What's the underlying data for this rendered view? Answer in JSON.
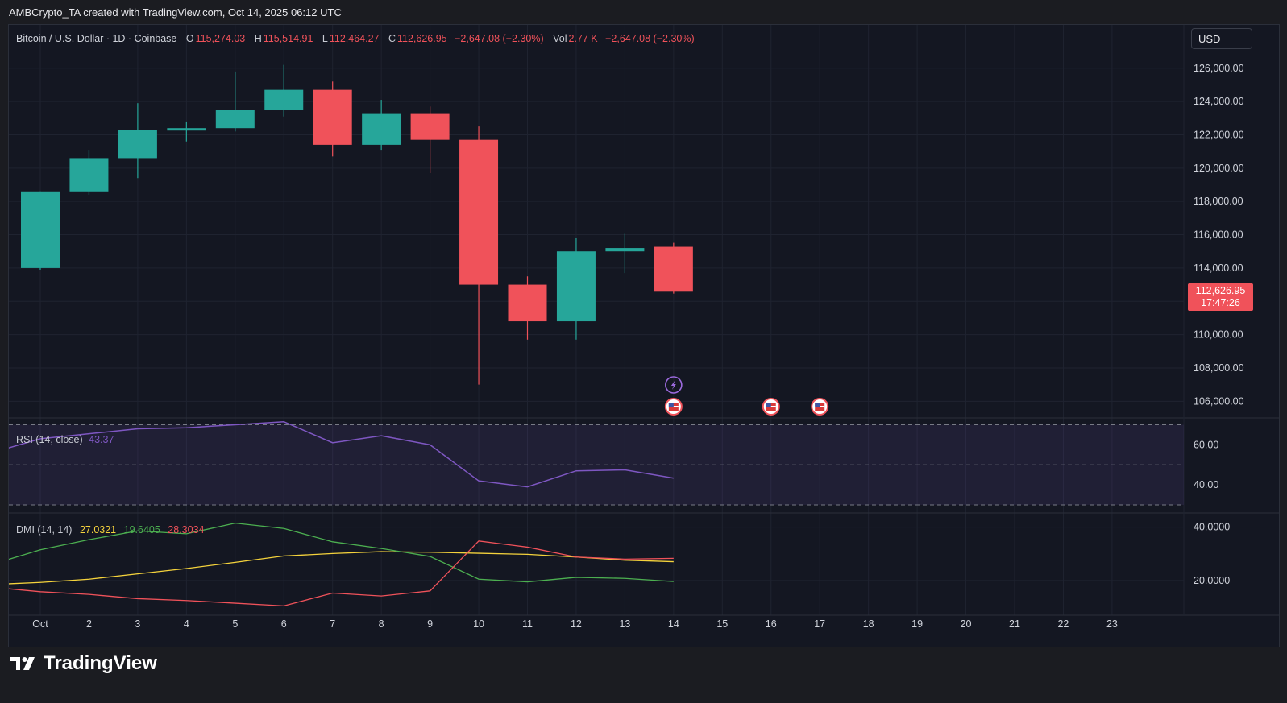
{
  "caption": "AMBCrypto_TA created with TradingView.com, Oct 14, 2025 06:12 UTC",
  "legend": {
    "symbol": "Bitcoin / U.S. Dollar · 1D · Coinbase",
    "o_label": "O",
    "o_value": "115,274.03",
    "h_label": "H",
    "h_value": "115,514.91",
    "l_label": "L",
    "l_value": "112,464.27",
    "c_label": "C",
    "c_value": "112,626.95",
    "change": "−2,647.08 (−2.30%)",
    "vol_label": "Vol",
    "vol_value": "2.77 K",
    "vol_change": "−2,647.08 (−2.30%)"
  },
  "currency": "USD",
  "price_tag": {
    "price": "112,626.95",
    "countdown": "17:47:26"
  },
  "rsi_legend": {
    "name": "RSI (14, close)",
    "value": "43.37"
  },
  "dmi_legend": {
    "name": "DMI (14, 14)",
    "adx": "27.0321",
    "plus_di": "19.6405",
    "minus_di": "28.3034"
  },
  "brand": "TradingView",
  "colors": {
    "up": "#26a69a",
    "down": "#f0525a",
    "rsi": "#7e57c2",
    "adx": "#f5d33c",
    "plus_di": "#4caf50",
    "minus_di": "#f0525a"
  },
  "chart_data": [
    {
      "type": "candlestick",
      "title": "Bitcoin / U.S. Dollar · 1D · Coinbase",
      "x_ticks": [
        "Oct",
        "2",
        "3",
        "4",
        "5",
        "6",
        "7",
        "8",
        "9",
        "10",
        "11",
        "12",
        "13",
        "14",
        "15",
        "16",
        "17",
        "18",
        "19",
        "20",
        "21",
        "22",
        "23"
      ],
      "y_ticks": [
        106000,
        108000,
        110000,
        112000,
        114000,
        116000,
        118000,
        120000,
        122000,
        124000,
        126000
      ],
      "y_tick_labels": [
        "106,000.00",
        "108,000.00",
        "110,000.00",
        "112,000.00",
        "114,000.00",
        "116,000.00",
        "118,000.00",
        "120,000.00",
        "122,000.00",
        "124,000.00",
        "126,000.00"
      ],
      "ylim": [
        105000,
        128600
      ],
      "candles": [
        {
          "x": "Oct",
          "open": 114000,
          "high": 118600,
          "low": 113900,
          "close": 118600
        },
        {
          "x": "2",
          "open": 118600,
          "high": 121100,
          "low": 118400,
          "close": 120600
        },
        {
          "x": "3",
          "open": 120600,
          "high": 123900,
          "low": 119400,
          "close": 122300
        },
        {
          "x": "4",
          "open": 122300,
          "high": 122800,
          "low": 121600,
          "close": 122400
        },
        {
          "x": "5",
          "open": 122400,
          "high": 125800,
          "low": 122200,
          "close": 123500
        },
        {
          "x": "6",
          "open": 123500,
          "high": 126200,
          "low": 123100,
          "close": 124700
        },
        {
          "x": "7",
          "open": 124700,
          "high": 125200,
          "low": 120700,
          "close": 121400
        },
        {
          "x": "8",
          "open": 121400,
          "high": 124100,
          "low": 121100,
          "close": 123300
        },
        {
          "x": "9",
          "open": 123300,
          "high": 123700,
          "low": 119700,
          "close": 121700
        },
        {
          "x": "10",
          "open": 121700,
          "high": 122500,
          "low": 107000,
          "close": 113000
        },
        {
          "x": "11",
          "open": 113000,
          "high": 113500,
          "low": 109700,
          "close": 110800
        },
        {
          "x": "12",
          "open": 110800,
          "high": 115800,
          "low": 109700,
          "close": 115000
        },
        {
          "x": "13",
          "open": 115000,
          "high": 116100,
          "low": 113700,
          "close": 115200
        },
        {
          "x": "14",
          "open": 115274.03,
          "high": 115514.91,
          "low": 112464.27,
          "close": 112626.95
        }
      ],
      "event_markers": [
        {
          "x": "14",
          "icon": "lightning-icon"
        },
        {
          "x": "14",
          "icon": "us-flag-icon"
        },
        {
          "x": "16",
          "icon": "us-flag-icon"
        },
        {
          "x": "17",
          "icon": "us-flag-icon"
        }
      ]
    },
    {
      "type": "line",
      "title": "RSI (14, close)",
      "y_ticks": [
        40,
        60
      ],
      "y_tick_labels": [
        "40.00",
        "60.00"
      ],
      "ylim": [
        26,
        73
      ],
      "band": [
        30,
        70
      ],
      "middle": 50,
      "series": [
        {
          "name": "RSI (14, close)",
          "x": [
            "Sep30",
            "Oct",
            "2",
            "3",
            "4",
            "5",
            "6",
            "7",
            "8",
            "9",
            "10",
            "11",
            "12",
            "13",
            "14"
          ],
          "values": [
            56,
            63,
            65.5,
            68,
            68.5,
            70,
            71.5,
            61,
            64.5,
            60,
            42,
            39,
            47,
            47.5,
            43.37
          ]
        }
      ]
    },
    {
      "type": "line",
      "title": "DMI (14, 14)",
      "y_ticks": [
        20,
        40
      ],
      "y_tick_labels": [
        "20.0000",
        "40.0000"
      ],
      "ylim": [
        7,
        45
      ],
      "series": [
        {
          "name": "ADX",
          "x": [
            "Sep30",
            "Oct",
            "2",
            "3",
            "4",
            "5",
            "6",
            "7",
            "8",
            "9",
            "10",
            "11",
            "12",
            "13",
            "14"
          ],
          "values": [
            18.5,
            19.3,
            20.5,
            22.5,
            24.5,
            26.8,
            29.2,
            30.1,
            30.8,
            30.6,
            30.2,
            29.8,
            28.8,
            27.6,
            27.0321
          ]
        },
        {
          "name": "+DI",
          "x": [
            "Sep30",
            "Oct",
            "2",
            "3",
            "4",
            "5",
            "6",
            "7",
            "8",
            "9",
            "10",
            "11",
            "12",
            "13",
            "14"
          ],
          "values": [
            26,
            31.5,
            35.3,
            38.6,
            37.5,
            41.5,
            39.5,
            34.5,
            32,
            29,
            20.5,
            19.5,
            21.2,
            20.8,
            19.6405
          ]
        },
        {
          "name": "−DI",
          "x": [
            "Sep30",
            "Oct",
            "2",
            "3",
            "4",
            "5",
            "6",
            "7",
            "8",
            "9",
            "10",
            "11",
            "12",
            "13",
            "14"
          ],
          "values": [
            17.5,
            15.8,
            14.8,
            13.2,
            12.5,
            11.5,
            10.5,
            15.3,
            14.2,
            16.1,
            34.8,
            32.5,
            28.8,
            28,
            28.3034
          ]
        }
      ]
    }
  ]
}
